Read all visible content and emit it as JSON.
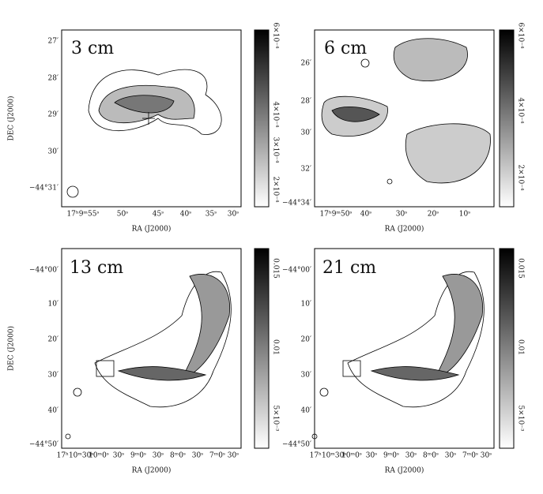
{
  "panels": [
    {
      "label": "3 cm",
      "y_ticks": [
        "27′",
        "28′",
        "29′",
        "30′",
        "−44°31′"
      ],
      "x_ticks": [
        "17ʰ9ᵐ55ˢ",
        "50ˢ",
        "45ˢ",
        "40ˢ",
        "35ˢ",
        "30ˢ"
      ],
      "y_axis_label": "DEC (J2000)",
      "x_axis_label": "RA (J2000)",
      "colorbar_ticks": [
        "6×10⁻⁴",
        "4×10⁻⁴",
        "3×10⁻⁴",
        "2×10⁻⁴"
      ]
    },
    {
      "label": "6 cm",
      "y_ticks": [
        "26′",
        "28′",
        "30′",
        "32′",
        "−44°34′"
      ],
      "x_ticks": [
        "17ʰ9ᵐ50ˢ",
        "40ˢ",
        "30ˢ",
        "20ˢ",
        "10ˢ"
      ],
      "x_axis_label": "RA (J2000)",
      "colorbar_ticks": [
        "6×10⁻⁴",
        "4×10⁻⁴",
        "2×10⁻⁴"
      ]
    },
    {
      "label": "13 cm",
      "y_ticks": [
        "−44°00′",
        "10′",
        "20′",
        "30′",
        "40′",
        "−44°50′"
      ],
      "x_ticks": [
        "17ʰ10ᵐ30ˢ",
        "10ᵐ0ˢ",
        "30ˢ",
        "9ᵐ0ˢ",
        "30ˢ",
        "8ᵐ0ˢ",
        "30ˢ",
        "7ᵐ0ˢ",
        "30ˢ"
      ],
      "y_axis_label": "DEC (J2000)",
      "x_axis_label": "RA (J2000)",
      "colorbar_ticks": [
        "0.015",
        "0.01",
        "5×10⁻³"
      ]
    },
    {
      "label": "21 cm",
      "y_ticks": [
        "−44°00′",
        "10′",
        "20′",
        "30′",
        "40′",
        "−44°50′"
      ],
      "x_ticks": [
        "17ʰ10ᵐ30ˢ",
        "10ᵐ0ˢ",
        "30ˢ",
        "9ᵐ0ˢ",
        "30ˢ",
        "8ᵐ0ˢ",
        "30ˢ",
        "7ᵐ0ˢ",
        "30ˢ"
      ],
      "x_axis_label": "RA (J2000)",
      "colorbar_ticks": [
        "0.015",
        "0.01",
        "5×10⁻³"
      ]
    }
  ]
}
